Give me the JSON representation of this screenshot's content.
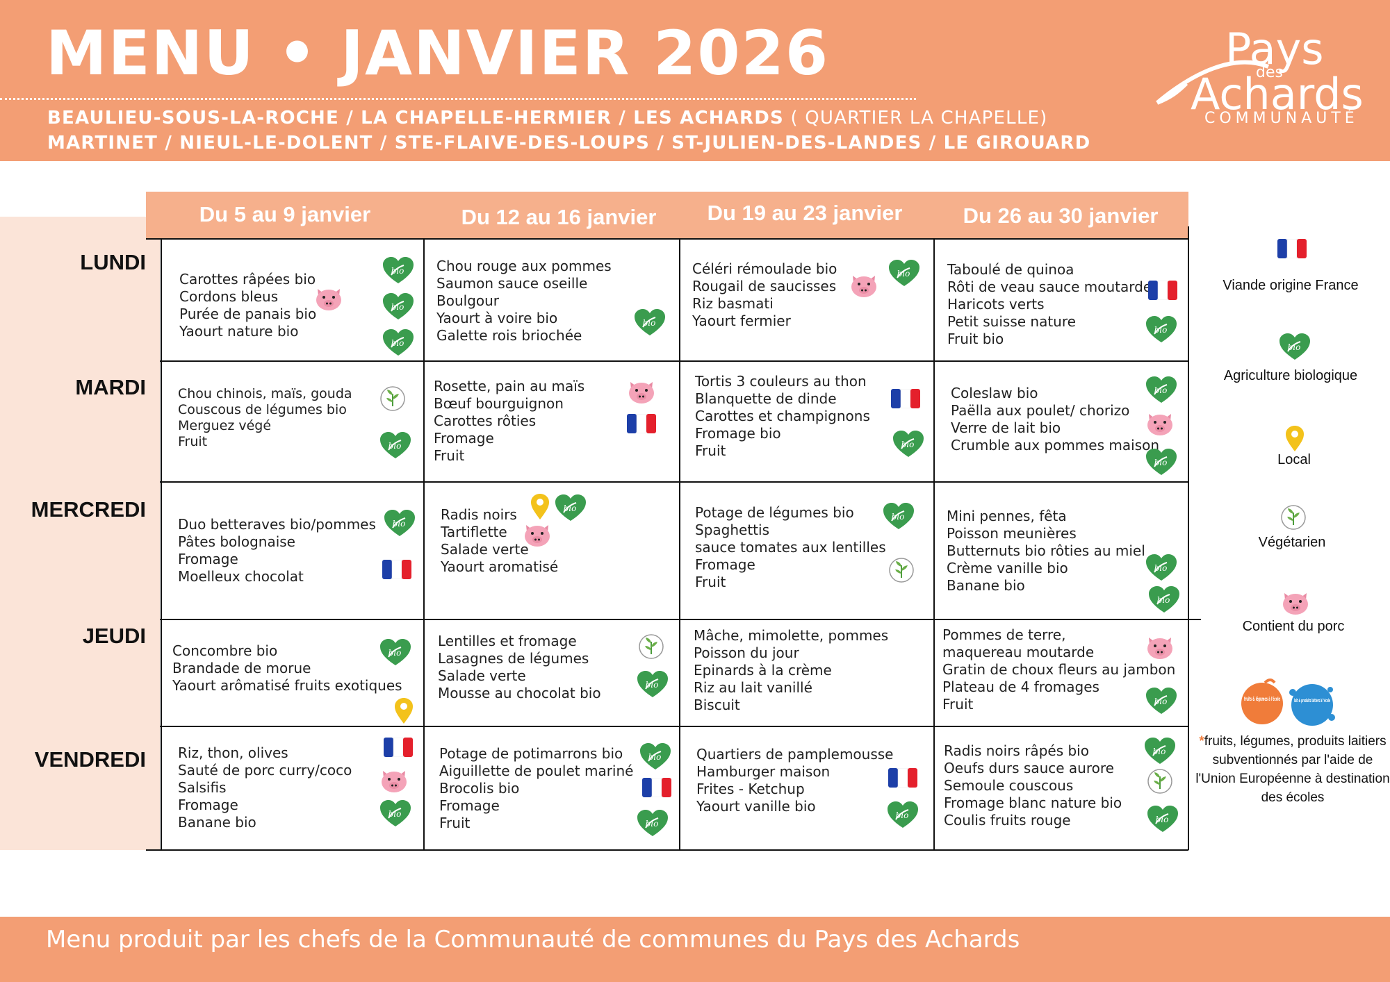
{
  "header": {
    "title": "MENU • JANVIER 2026",
    "towns_line1": "BEAULIEU-SOUS-LA-ROCHE / LA CHAPELLE-HERMIER / LES ACHARDS",
    "towns_line1_light": " ( QUARTIER LA CHAPELLE)",
    "towns_line2": "MARTINET / NIEUL-LE-DOLENT / STE-FLAIVE-DES-LOUPS / ST-JULIEN-DES-LANDES / LE GIROUARD",
    "logo": {
      "pays": "Pays",
      "des": "des",
      "achards": "Achards",
      "communaute": "COMMUNAUTÉ"
    }
  },
  "weeks": [
    "Du 5 au 9 janvier",
    "Du 12 au 16 janvier",
    "Du 19 au 23 janvier",
    "Du 26 au 30 janvier"
  ],
  "days": [
    "LUNDI",
    "MARDI",
    "MERCREDI",
    "JEUDI",
    "VENDREDI"
  ],
  "menu": {
    "lundi": [
      [
        "Carottes râpées bio",
        "Cordons bleus",
        "Purée de panais bio",
        "Yaourt nature bio"
      ],
      [
        "Chou rouge aux pommes",
        "Saumon sauce oseille",
        "Boulgour",
        "Yaourt à voire bio",
        "Galette rois briochée"
      ],
      [
        "Céléri rémoulade bio",
        "Rougail de saucisses",
        "Riz basmati",
        "Yaourt fermier"
      ],
      [
        "Taboulé de quinoa",
        "Rôti de veau sauce moutarde",
        "Haricots verts",
        "Petit suisse nature",
        "Fruit bio"
      ]
    ],
    "mardi": [
      [
        "Chou chinois, maïs, gouda",
        "Couscous de légumes bio",
        "Merguez végé",
        "Fruit"
      ],
      [
        "Rosette, pain au maïs",
        "Bœuf bourguignon",
        "Carottes rôties",
        "Fromage",
        "Fruit"
      ],
      [
        "Tortis 3 couleurs au thon",
        "Blanquette de dinde",
        "Carottes et champignons",
        "Fromage bio",
        "Fruit"
      ],
      [
        "Coleslaw bio",
        "Paëlla aux poulet/ chorizo",
        "Verre de lait bio",
        "Crumble aux pommes maison"
      ]
    ],
    "mercredi": [
      [
        "Duo betteraves bio/pommes",
        "Pâtes bolognaise",
        "Fromage",
        "Moelleux chocolat"
      ],
      [
        "Radis noirs",
        "Tartiflette",
        "Salade verte",
        "Yaourt aromatisé"
      ],
      [
        "Potage de légumes bio",
        "Spaghettis",
        "sauce tomates aux lentilles",
        "Fromage",
        "Fruit"
      ],
      [
        "Mini pennes, fêta",
        "Poisson meunières",
        "Butternuts bio rôties au miel",
        "Crème  vanille bio",
        "Banane bio"
      ]
    ],
    "jeudi": [
      [
        "Concombre bio",
        "Brandade de morue",
        "Yaourt arômatisé fruits exotiques"
      ],
      [
        "Lentilles et fromage",
        "Lasagnes de légumes",
        "Salade verte",
        "Mousse au chocolat bio"
      ],
      [
        "Mâche, mimolette, pommes",
        "Poisson du jour",
        "Epinards à la crème",
        "Riz au lait vanillé",
        "Biscuit"
      ],
      [
        "Pommes de terre,",
        "maquereau moutarde",
        "Gratin de choux fleurs au jambon",
        "Plateau de 4 fromages",
        "Fruit"
      ]
    ],
    "vendredi": [
      [
        "Riz, thon, olives",
        "Sauté de porc curry/coco",
        "Salsifis",
        "Fromage",
        "Banane bio"
      ],
      [
        "Potage de potimarrons bio",
        "Aiguillette de poulet mariné",
        "Brocolis bio",
        "Fromage",
        "Fruit"
      ],
      [
        "Quartiers de pamplemousse",
        "Hamburger maison",
        "Frites - Ketchup",
        "Yaourt vanille bio"
      ],
      [
        "Radis noirs râpés bio",
        "Oeufs durs sauce aurore",
        "Semoule couscous",
        "Fromage blanc nature bio",
        "Coulis fruits rouge"
      ]
    ]
  },
  "legend": {
    "france": "Viande origine France",
    "bio": "Agriculture biologique",
    "local": "Local",
    "vegetarien": "Végétarien",
    "porc": "Contient du porc"
  },
  "eu_logos": {
    "fruits": "fruits & légumes à l'école",
    "lait": "lait & produits laitiers à l'école"
  },
  "eu_note": {
    "star": "*",
    "text": "fruits, légumes, produits laitiers subventionnés par l'aide de l'Union Européenne à destination des écoles"
  },
  "footer": "Menu produit par les chefs de la Communauté de communes du Pays des Achards",
  "colors": {
    "orange": "#f39e74",
    "week_bar": "#f6b08c",
    "pink_band": "#fbe4d8",
    "bio_green": "#3a9c4e",
    "pig_pink": "#f4a3b8"
  }
}
